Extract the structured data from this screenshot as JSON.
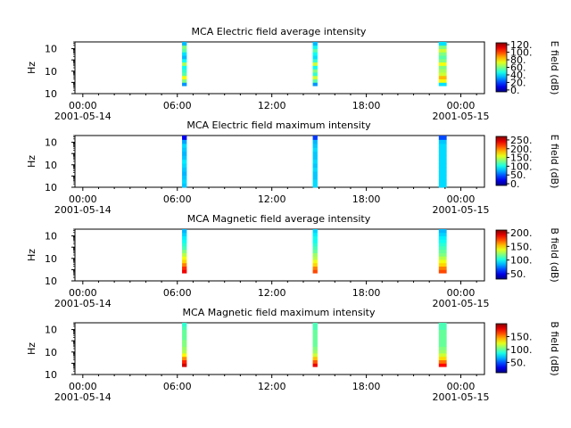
{
  "figure": {
    "x_axis": {
      "start": "2001-05-14 00:00",
      "end": "2001-05-15 00:00",
      "xlim_hours": [
        -0.5,
        25.5
      ],
      "major_ticks": [
        {
          "hour": 0,
          "time": "00:00",
          "date": "2001-05-14"
        },
        {
          "hour": 6,
          "time": "06:00",
          "date": ""
        },
        {
          "hour": 12,
          "time": "12:00",
          "date": ""
        },
        {
          "hour": 18,
          "time": "18:00",
          "date": ""
        },
        {
          "hour": 24,
          "time": "00:00",
          "date": "2001-05-15"
        }
      ],
      "minor_tick_every_hours": 1
    },
    "y_axis": {
      "label": "Hz",
      "scale": "log",
      "ylim": [
        1,
        40000
      ],
      "ticks": [
        {
          "value": 1,
          "base": "10",
          "exp": "0"
        },
        {
          "value": 100,
          "base": "10",
          "exp": "2"
        },
        {
          "value": 10000,
          "base": "10",
          "exp": "4"
        }
      ]
    }
  },
  "chart_data": [
    {
      "type": "heatmap",
      "title": "MCA  Electric field average intensity",
      "xlabel": "",
      "ylabel": "Hz",
      "yscale": "log",
      "colorbar": {
        "label": "E field (dB)",
        "range": [
          -5,
          125
        ],
        "ticks": [
          "0.",
          "20.",
          "40.",
          "60.",
          "80.",
          "100.",
          "120."
        ]
      },
      "passes": [
        {
          "start_hour": 6.3,
          "end_hour": 6.6,
          "freq_range": [
            5,
            40000
          ],
          "profile": [
            30,
            60,
            75,
            55,
            50,
            45,
            65,
            45,
            35,
            40,
            55,
            60,
            35
          ]
        },
        {
          "start_hour": 14.6,
          "end_hour": 14.9,
          "freq_range": [
            5,
            40000
          ],
          "profile": [
            30,
            55,
            70,
            50,
            60,
            45,
            70,
            50,
            40,
            45,
            55,
            45,
            35
          ]
        },
        {
          "start_hour": 22.6,
          "end_hour": 23.1,
          "freq_range": [
            5,
            40000
          ],
          "profile": [
            40,
            75,
            85,
            70,
            65,
            60,
            75,
            60,
            55,
            60,
            70,
            60,
            40
          ]
        }
      ]
    },
    {
      "type": "heatmap",
      "title": "MCA  Electric field maximum intensity",
      "xlabel": "",
      "ylabel": "Hz",
      "yscale": "log",
      "colorbar": {
        "label": "E field (dB)",
        "range": [
          -10,
          270
        ],
        "ticks": [
          "0.",
          "50.",
          "100.",
          "150.",
          "200.",
          "250."
        ]
      },
      "passes": [
        {
          "start_hour": 6.3,
          "end_hour": 6.6,
          "freq_range": [
            1,
            40000
          ],
          "profile": [
            80,
            85,
            80,
            75,
            80,
            85,
            90,
            80,
            75,
            80,
            85,
            70,
            20
          ]
        },
        {
          "start_hour": 14.6,
          "end_hour": 14.9,
          "freq_range": [
            1,
            40000
          ],
          "profile": [
            85,
            85,
            80,
            80,
            85,
            80,
            85,
            80,
            80,
            85,
            80,
            75,
            40
          ]
        },
        {
          "start_hour": 22.6,
          "end_hour": 23.1,
          "freq_range": [
            1,
            40000
          ],
          "profile": [
            85,
            85,
            85,
            85,
            85,
            85,
            85,
            85,
            85,
            85,
            85,
            80,
            45
          ]
        }
      ]
    },
    {
      "type": "heatmap",
      "title": "MCA  Magnetic field average intensity",
      "xlabel": "",
      "ylabel": "Hz",
      "yscale": "log",
      "colorbar": {
        "label": "B field (dB)",
        "range": [
          30,
          210
        ],
        "ticks": [
          "50.",
          "100.",
          "150.",
          "200."
        ]
      },
      "passes": [
        {
          "start_hour": 6.3,
          "end_hour": 6.6,
          "freq_range": [
            5,
            40000
          ],
          "profile": [
            190,
            180,
            165,
            150,
            140,
            130,
            120,
            110,
            105,
            100,
            95,
            90,
            85
          ]
        },
        {
          "start_hour": 14.6,
          "end_hour": 14.9,
          "freq_range": [
            5,
            40000
          ],
          "profile": [
            175,
            165,
            150,
            140,
            130,
            125,
            115,
            110,
            105,
            100,
            100,
            95,
            90
          ]
        },
        {
          "start_hour": 22.6,
          "end_hour": 23.1,
          "freq_range": [
            5,
            40000
          ],
          "profile": [
            175,
            165,
            150,
            140,
            130,
            120,
            115,
            110,
            105,
            100,
            95,
            90,
            85
          ]
        }
      ]
    },
    {
      "type": "heatmap",
      "title": "MCA  Magnetic field maximum intensity",
      "xlabel": "",
      "ylabel": "Hz",
      "yscale": "log",
      "colorbar": {
        "label": "B field (dB)",
        "range": [
          10,
          200
        ],
        "ticks": [
          "50.",
          "100.",
          "150."
        ]
      },
      "passes": [
        {
          "start_hour": 6.3,
          "end_hour": 6.6,
          "freq_range": [
            5,
            40000
          ],
          "profile": [
            185,
            170,
            150,
            130,
            115,
            110,
            105,
            105,
            100,
            100,
            100,
            95,
            90
          ]
        },
        {
          "start_hour": 14.6,
          "end_hour": 14.9,
          "freq_range": [
            5,
            40000
          ],
          "profile": [
            180,
            160,
            140,
            120,
            110,
            105,
            100,
            100,
            100,
            100,
            100,
            95,
            95
          ]
        },
        {
          "start_hour": 22.6,
          "end_hour": 23.1,
          "freq_range": [
            5,
            40000
          ],
          "profile": [
            175,
            155,
            135,
            120,
            110,
            105,
            100,
            100,
            100,
            100,
            100,
            95,
            95
          ]
        }
      ]
    }
  ]
}
